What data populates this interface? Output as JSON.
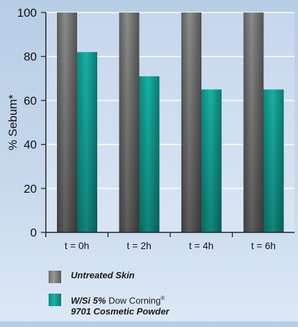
{
  "chart_data": {
    "type": "bar",
    "ylabel": "% Sebum*",
    "ylim": [
      0,
      100
    ],
    "yticks": [
      0,
      20,
      40,
      60,
      80,
      100
    ],
    "categories": [
      "t = 0h",
      "t = 2h",
      "t = 4h",
      "t = 6h"
    ],
    "grid": true,
    "legend_placement": "bottom",
    "series": [
      {
        "name": "Untreated Skin",
        "values": [
          100,
          100,
          100,
          100
        ],
        "color": "#707070"
      },
      {
        "name": "W/Si 5% Dow Corning® 9701 Cosmetic Powder",
        "values": [
          82,
          71,
          65,
          65
        ],
        "color": "#129e95"
      }
    ]
  },
  "legend": {
    "item1": "Untreated Skin",
    "item2_prefix": "W/Si 5% ",
    "item2_brand": "Dow Corning",
    "item2_reg": "®",
    "item2_line2": "9701 Cosmetic Powder"
  }
}
